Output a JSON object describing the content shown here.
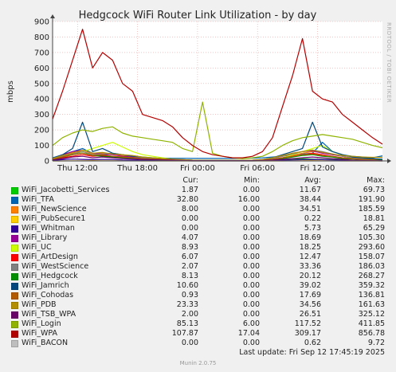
{
  "chart_data": {
    "type": "line",
    "title": "Hedgcock WiFi Router Link Utilization - by day",
    "ylabel": "mbps",
    "side_label": "RRDTOOL / TOBI OETIKER",
    "ylim": [
      0,
      900
    ],
    "yticks": [
      0,
      100,
      200,
      300,
      400,
      500,
      600,
      700,
      800,
      900
    ],
    "xlim": [
      0,
      33
    ],
    "x_unit": "hours from left edge of graph (Thu ~09:30)",
    "xticks": [
      {
        "x": 2.5,
        "label": "Thu 12:00"
      },
      {
        "x": 8.5,
        "label": "Thu 18:00"
      },
      {
        "x": 14.5,
        "label": "Fri 00:00"
      },
      {
        "x": 20.5,
        "label": "Fri 06:00"
      },
      {
        "x": 26.5,
        "label": "Fri 12:00"
      }
    ],
    "grid": true,
    "x": [
      0,
      1,
      2,
      3,
      4,
      5,
      6,
      7,
      8,
      9,
      10,
      11,
      12,
      13,
      14,
      15,
      16,
      17,
      18,
      19,
      20,
      21,
      22,
      23,
      24,
      25,
      26,
      27,
      28,
      29,
      30,
      31,
      32,
      33
    ],
    "series": [
      {
        "name": "WiFi_Jacobetti_Services",
        "color": "#00cc00",
        "values": [
          10,
          30,
          45,
          50,
          40,
          35,
          30,
          20,
          15,
          10,
          8,
          6,
          5,
          3,
          2,
          2,
          2,
          2,
          2,
          2,
          2,
          3,
          5,
          8,
          12,
          15,
          12,
          10,
          8,
          6,
          4,
          3,
          2,
          2
        ]
      },
      {
        "name": "WiFi_TFA",
        "color": "#0066b3",
        "values": [
          20,
          40,
          60,
          80,
          50,
          40,
          45,
          30,
          25,
          20,
          15,
          18,
          17,
          17,
          16,
          16,
          16,
          16,
          16,
          17,
          18,
          20,
          25,
          30,
          40,
          45,
          50,
          120,
          60,
          40,
          30,
          25,
          20,
          33
        ]
      },
      {
        "name": "WiFi_NewScience",
        "color": "#ff8000",
        "values": [
          15,
          35,
          55,
          60,
          45,
          50,
          40,
          35,
          30,
          20,
          15,
          10,
          8,
          5,
          3,
          2,
          2,
          2,
          2,
          2,
          3,
          5,
          10,
          20,
          35,
          50,
          60,
          55,
          40,
          30,
          20,
          15,
          10,
          8
        ]
      },
      {
        "name": "WiFi_PubSecure1",
        "color": "#ffcc00",
        "values": [
          0,
          0,
          1,
          1,
          2,
          1,
          1,
          1,
          1,
          0,
          0,
          0,
          0,
          0,
          0,
          0,
          0,
          0,
          0,
          0,
          0,
          0,
          0,
          0,
          1,
          1,
          2,
          1,
          1,
          0,
          0,
          0,
          0,
          0
        ]
      },
      {
        "name": "WiFi_Whitman",
        "color": "#330099",
        "values": [
          3,
          8,
          12,
          10,
          8,
          10,
          9,
          6,
          5,
          4,
          3,
          2,
          1,
          1,
          0,
          0,
          0,
          0,
          0,
          0,
          0,
          1,
          2,
          4,
          6,
          8,
          10,
          8,
          6,
          4,
          3,
          2,
          1,
          0
        ]
      },
      {
        "name": "WiFi_Library",
        "color": "#990099",
        "values": [
          15,
          40,
          60,
          70,
          50,
          45,
          40,
          30,
          25,
          20,
          15,
          12,
          10,
          5,
          3,
          2,
          2,
          2,
          2,
          2,
          3,
          5,
          15,
          30,
          50,
          60,
          65,
          50,
          40,
          30,
          20,
          15,
          10,
          4
        ]
      },
      {
        "name": "WiFi_UC",
        "color": "#ccff00",
        "values": [
          10,
          20,
          40,
          60,
          80,
          100,
          120,
          90,
          60,
          40,
          30,
          20,
          10,
          5,
          2,
          2,
          2,
          2,
          2,
          2,
          2,
          4,
          10,
          20,
          40,
          60,
          80,
          100,
          60,
          40,
          20,
          15,
          10,
          9
        ]
      },
      {
        "name": "WiFi_ArtDesign",
        "color": "#ff0000",
        "values": [
          10,
          20,
          30,
          40,
          30,
          35,
          30,
          25,
          20,
          15,
          12,
          10,
          8,
          5,
          3,
          2,
          2,
          2,
          2,
          2,
          3,
          5,
          10,
          20,
          30,
          40,
          50,
          40,
          30,
          20,
          15,
          10,
          8,
          6
        ]
      },
      {
        "name": "WiFi_WestScience",
        "color": "#808080",
        "values": [
          10,
          30,
          45,
          60,
          40,
          45,
          50,
          40,
          30,
          20,
          15,
          12,
          10,
          6,
          4,
          3,
          3,
          3,
          3,
          3,
          4,
          6,
          15,
          30,
          45,
          60,
          70,
          60,
          45,
          30,
          20,
          15,
          10,
          2
        ]
      },
      {
        "name": "WiFi_Hedgcock",
        "color": "#008f00",
        "values": [
          8,
          25,
          40,
          50,
          35,
          30,
          25,
          20,
          15,
          10,
          8,
          6,
          5,
          3,
          2,
          2,
          2,
          2,
          2,
          2,
          2,
          3,
          8,
          15,
          25,
          35,
          40,
          30,
          25,
          15,
          12,
          10,
          8,
          8
        ]
      },
      {
        "name": "WiFi_Jamrich",
        "color": "#00487d",
        "values": [
          15,
          40,
          80,
          250,
          60,
          80,
          50,
          40,
          30,
          25,
          20,
          15,
          10,
          8,
          5,
          4,
          4,
          4,
          4,
          4,
          5,
          8,
          20,
          40,
          60,
          80,
          250,
          90,
          60,
          40,
          25,
          20,
          15,
          11
        ]
      },
      {
        "name": "WiFi_Cohodas",
        "color": "#b35a00",
        "values": [
          10,
          25,
          40,
          50,
          35,
          40,
          30,
          25,
          20,
          15,
          12,
          10,
          8,
          5,
          3,
          2,
          2,
          2,
          2,
          2,
          3,
          5,
          10,
          20,
          30,
          40,
          45,
          35,
          30,
          20,
          15,
          10,
          8,
          1
        ]
      },
      {
        "name": "WiFi_PDB",
        "color": "#b38f00",
        "values": [
          15,
          35,
          50,
          70,
          50,
          55,
          45,
          40,
          35,
          25,
          20,
          15,
          12,
          8,
          5,
          4,
          4,
          4,
          4,
          4,
          5,
          8,
          20,
          35,
          50,
          60,
          70,
          55,
          45,
          35,
          30,
          25,
          23,
          23
        ]
      },
      {
        "name": "WiFi_TSB_WPA",
        "color": "#6b006b",
        "values": [
          5,
          15,
          25,
          30,
          20,
          25,
          20,
          15,
          12,
          10,
          8,
          6,
          5,
          3,
          2,
          2,
          2,
          2,
          2,
          2,
          2,
          3,
          5,
          10,
          15,
          20,
          25,
          20,
          15,
          10,
          5,
          3,
          2,
          2
        ]
      },
      {
        "name": "WiFi_Login",
        "color": "#8fb300",
        "values": [
          100,
          150,
          180,
          200,
          190,
          210,
          220,
          180,
          160,
          150,
          140,
          130,
          120,
          80,
          60,
          380,
          50,
          30,
          20,
          15,
          20,
          30,
          60,
          100,
          130,
          150,
          160,
          170,
          160,
          150,
          140,
          120,
          100,
          85
        ]
      },
      {
        "name": "WiFi_WPA",
        "color": "#b30000",
        "values": [
          270,
          450,
          650,
          850,
          600,
          700,
          650,
          500,
          450,
          300,
          280,
          260,
          220,
          150,
          100,
          60,
          40,
          30,
          20,
          20,
          30,
          60,
          150,
          350,
          550,
          790,
          450,
          400,
          380,
          300,
          250,
          200,
          150,
          108
        ]
      },
      {
        "name": "WiFi_BACON",
        "color": "#bebebe",
        "values": [
          0,
          0,
          0,
          0,
          0,
          0,
          0,
          0,
          0,
          0,
          0,
          0,
          0,
          0,
          0,
          0,
          0,
          0,
          0,
          0,
          0,
          0,
          0,
          0,
          0,
          0,
          0,
          0,
          0,
          0,
          0,
          0,
          0,
          0
        ]
      }
    ]
  },
  "legend": {
    "headers": [
      "Cur:",
      "Min:",
      "Avg:",
      "Max:"
    ],
    "rows": [
      {
        "name": "WiFi_Jacobetti_Services",
        "color": "#00cc00",
        "cur": "1.87",
        "min": "0.00",
        "avg": "11.67",
        "max": "69.73"
      },
      {
        "name": "WiFi_TFA",
        "color": "#0066b3",
        "cur": "32.80",
        "min": "16.00",
        "avg": "38.44",
        "max": "191.90"
      },
      {
        "name": "WiFi_NewScience",
        "color": "#ff8000",
        "cur": "8.00",
        "min": "0.00",
        "avg": "34.51",
        "max": "185.59"
      },
      {
        "name": "WiFi_PubSecure1",
        "color": "#ffcc00",
        "cur": "0.00",
        "min": "0.00",
        "avg": "0.22",
        "max": "18.81"
      },
      {
        "name": "WiFi_Whitman",
        "color": "#330099",
        "cur": "0.00",
        "min": "0.00",
        "avg": "5.73",
        "max": "65.29"
      },
      {
        "name": "WiFi_Library",
        "color": "#990099",
        "cur": "4.07",
        "min": "0.00",
        "avg": "18.69",
        "max": "105.30"
      },
      {
        "name": "WiFi_UC",
        "color": "#ccff00",
        "cur": "8.93",
        "min": "0.00",
        "avg": "18.25",
        "max": "293.60"
      },
      {
        "name": "WiFi_ArtDesign",
        "color": "#ff0000",
        "cur": "6.07",
        "min": "0.00",
        "avg": "12.47",
        "max": "158.07"
      },
      {
        "name": "WiFi_WestScience",
        "color": "#808080",
        "cur": "2.07",
        "min": "0.00",
        "avg": "33.36",
        "max": "186.03"
      },
      {
        "name": "WiFi_Hedgcock",
        "color": "#008f00",
        "cur": "8.13",
        "min": "0.00",
        "avg": "20.12",
        "max": "268.27"
      },
      {
        "name": "WiFi_Jamrich",
        "color": "#00487d",
        "cur": "10.60",
        "min": "0.00",
        "avg": "39.02",
        "max": "359.32"
      },
      {
        "name": "WiFi_Cohodas",
        "color": "#b35a00",
        "cur": "0.93",
        "min": "0.00",
        "avg": "17.69",
        "max": "136.81"
      },
      {
        "name": "WiFi_PDB",
        "color": "#b38f00",
        "cur": "23.33",
        "min": "0.00",
        "avg": "34.56",
        "max": "161.63"
      },
      {
        "name": "WiFi_TSB_WPA",
        "color": "#6b006b",
        "cur": "2.00",
        "min": "0.00",
        "avg": "26.51",
        "max": "325.12"
      },
      {
        "name": "WiFi_Login",
        "color": "#8fb300",
        "cur": "85.13",
        "min": "6.00",
        "avg": "117.52",
        "max": "411.85"
      },
      {
        "name": "WiFi_WPA",
        "color": "#b30000",
        "cur": "107.87",
        "min": "17.04",
        "avg": "309.17",
        "max": "856.78"
      },
      {
        "name": "WiFi_BACON",
        "color": "#bebebe",
        "cur": "0.00",
        "min": "0.00",
        "avg": "0.62",
        "max": "9.72"
      }
    ]
  },
  "footer": {
    "last_update": "Last update: Fri Sep 12 17:45:19 2025",
    "generator": "Munin 2.0.75"
  }
}
